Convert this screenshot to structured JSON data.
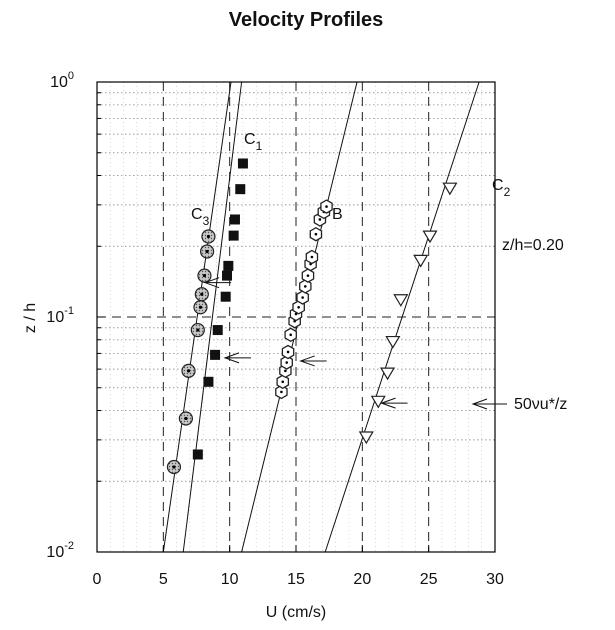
{
  "chart_data": {
    "type": "scatter",
    "title": "Velocity Profiles",
    "xlabel": "U (cm/s)",
    "ylabel": "z / h",
    "xlim": [
      0,
      30
    ],
    "ylim": [
      0.01,
      1
    ],
    "yscale": "log",
    "x_ticks": [
      "0",
      "5",
      "10",
      "15",
      "20",
      "25",
      "30"
    ],
    "y_ticks": [
      {
        "base": "10",
        "exp": "-2"
      },
      {
        "base": "10",
        "exp": "-1"
      },
      {
        "base": "10",
        "exp": "0"
      }
    ],
    "grid": true,
    "series": [
      {
        "name": "C1",
        "label_main": "C",
        "label_sub": "1",
        "marker": "filled-square",
        "points": [
          [
            7.6,
            0.026
          ],
          [
            8.4,
            0.053
          ],
          [
            8.9,
            0.069
          ],
          [
            9.1,
            0.088
          ],
          [
            9.7,
            0.122
          ],
          [
            9.8,
            0.15
          ],
          [
            9.9,
            0.165
          ],
          [
            10.3,
            0.222
          ],
          [
            10.4,
            0.26
          ],
          [
            10.8,
            0.35
          ],
          [
            11.0,
            0.45
          ]
        ],
        "fit": [
          [
            6.5,
            0.01
          ],
          [
            10.9,
            1.0
          ]
        ]
      },
      {
        "name": "C3",
        "label_main": "C",
        "label_sub": "3",
        "marker": "dotted-circle",
        "points": [
          [
            5.8,
            0.023
          ],
          [
            6.7,
            0.037
          ],
          [
            6.9,
            0.059
          ],
          [
            7.6,
            0.088
          ],
          [
            7.8,
            0.11
          ],
          [
            7.9,
            0.125
          ],
          [
            8.1,
            0.15
          ],
          [
            8.3,
            0.19
          ],
          [
            8.4,
            0.22
          ]
        ],
        "fit": [
          [
            5.0,
            0.01
          ],
          [
            10.1,
            1.0
          ]
        ]
      },
      {
        "name": "B",
        "label_main": "B",
        "label_sub": "",
        "marker": "dotted-hexagon",
        "points": [
          [
            13.9,
            0.048
          ],
          [
            14.0,
            0.053
          ],
          [
            14.2,
            0.059
          ],
          [
            14.3,
            0.064
          ],
          [
            14.4,
            0.071
          ],
          [
            14.6,
            0.084
          ],
          [
            14.9,
            0.096
          ],
          [
            15.0,
            0.103
          ],
          [
            15.2,
            0.11
          ],
          [
            15.5,
            0.121
          ],
          [
            15.7,
            0.135
          ],
          [
            15.9,
            0.15
          ],
          [
            16.1,
            0.168
          ],
          [
            16.2,
            0.18
          ],
          [
            16.5,
            0.225
          ],
          [
            16.8,
            0.26
          ],
          [
            17.1,
            0.28
          ],
          [
            17.3,
            0.295
          ]
        ],
        "fit": [
          [
            10.9,
            0.01
          ],
          [
            19.6,
            1.0
          ]
        ]
      },
      {
        "name": "C2",
        "label_main": "C",
        "label_sub": "2",
        "marker": "open-triangle-down",
        "points": [
          [
            20.3,
            0.031
          ],
          [
            21.2,
            0.044
          ],
          [
            21.9,
            0.058
          ],
          [
            22.3,
            0.079
          ],
          [
            22.9,
            0.119
          ],
          [
            24.4,
            0.175
          ],
          [
            25.1,
            0.222
          ],
          [
            26.6,
            0.355
          ]
        ],
        "fit": [
          [
            17.2,
            0.01
          ],
          [
            28.8,
            1.0
          ]
        ]
      }
    ],
    "reference_lines": {
      "x": [
        5,
        10,
        15,
        20,
        25
      ],
      "y": [
        0.1
      ],
      "style": "dashed"
    },
    "annotations": {
      "zh_label": "z/h=0.20",
      "nu_label": "50νu*/z",
      "arrows": [
        {
          "x": 8.0,
          "y": 0.14
        },
        {
          "x": 9.5,
          "y": 0.067
        },
        {
          "x": 15.2,
          "y": 0.065
        },
        {
          "x": 21.3,
          "y": 0.043
        }
      ]
    }
  }
}
